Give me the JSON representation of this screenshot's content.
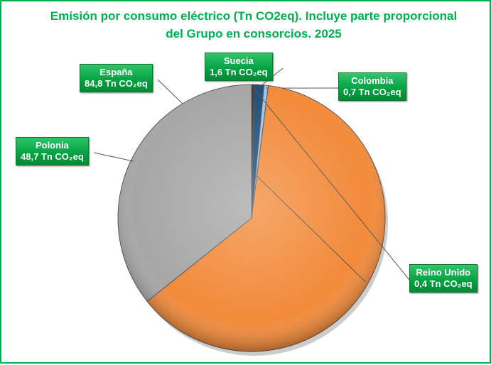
{
  "chart_data": {
    "type": "pie",
    "title": "Emisión por consumo eléctrico (Tn CO2eq). Incluye parte proporcional del Grupo en consorcios. 2025",
    "categories": [
      "Suecia",
      "Colombia",
      "España",
      "Polonia",
      "Reino Unido"
    ],
    "values": [
      1.6,
      0.7,
      84.8,
      48.7,
      0.4
    ],
    "value_labels": [
      "1,6 Tn CO₂eq",
      "0,7 Tn CO₂eq",
      "84,8 Tn CO₂eq",
      "48,7 Tn CO₂eq",
      "0,4 Tn CO₂eq"
    ],
    "colors": [
      "#1f4e79",
      "#9dc3e6",
      "#f28a3a",
      "#a6a6a6",
      "#3a3a3a"
    ]
  }
}
